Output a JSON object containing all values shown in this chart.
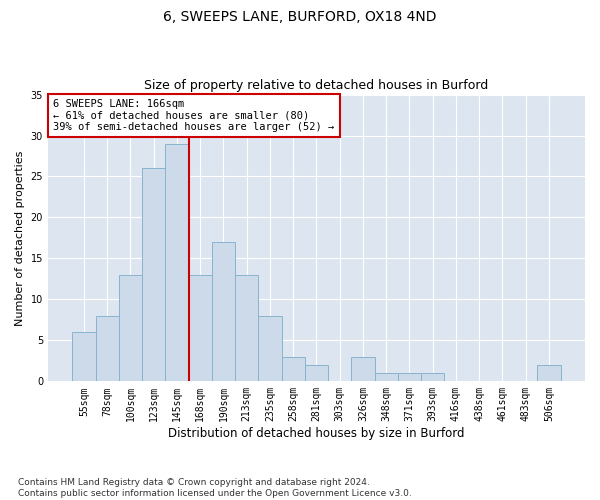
{
  "title1": "6, SWEEPS LANE, BURFORD, OX18 4ND",
  "title2": "Size of property relative to detached houses in Burford",
  "xlabel": "Distribution of detached houses by size in Burford",
  "ylabel": "Number of detached properties",
  "bar_labels": [
    "55sqm",
    "78sqm",
    "100sqm",
    "123sqm",
    "145sqm",
    "168sqm",
    "190sqm",
    "213sqm",
    "235sqm",
    "258sqm",
    "281sqm",
    "303sqm",
    "326sqm",
    "348sqm",
    "371sqm",
    "393sqm",
    "416sqm",
    "438sqm",
    "461sqm",
    "483sqm",
    "506sqm"
  ],
  "bar_values": [
    6,
    8,
    13,
    26,
    29,
    13,
    17,
    13,
    8,
    3,
    2,
    0,
    3,
    1,
    1,
    1,
    0,
    0,
    0,
    0,
    2
  ],
  "bar_color": "#ccdaea",
  "bar_edgecolor": "#89b4ce",
  "vline_index": 5,
  "vline_color": "#cc0000",
  "annotation_text": "6 SWEEPS LANE: 166sqm\n← 61% of detached houses are smaller (80)\n39% of semi-detached houses are larger (52) →",
  "annotation_box_color": "#ffffff",
  "annotation_box_edgecolor": "#cc0000",
  "ylim": [
    0,
    35
  ],
  "yticks": [
    0,
    5,
    10,
    15,
    20,
    25,
    30,
    35
  ],
  "plot_bg_color": "#dde6f0",
  "grid_color": "#ffffff",
  "footnote": "Contains HM Land Registry data © Crown copyright and database right 2024.\nContains public sector information licensed under the Open Government Licence v3.0.",
  "title1_fontsize": 10,
  "title2_fontsize": 9,
  "xlabel_fontsize": 8.5,
  "ylabel_fontsize": 8,
  "tick_fontsize": 7,
  "annot_fontsize": 7.5,
  "footnote_fontsize": 6.5
}
